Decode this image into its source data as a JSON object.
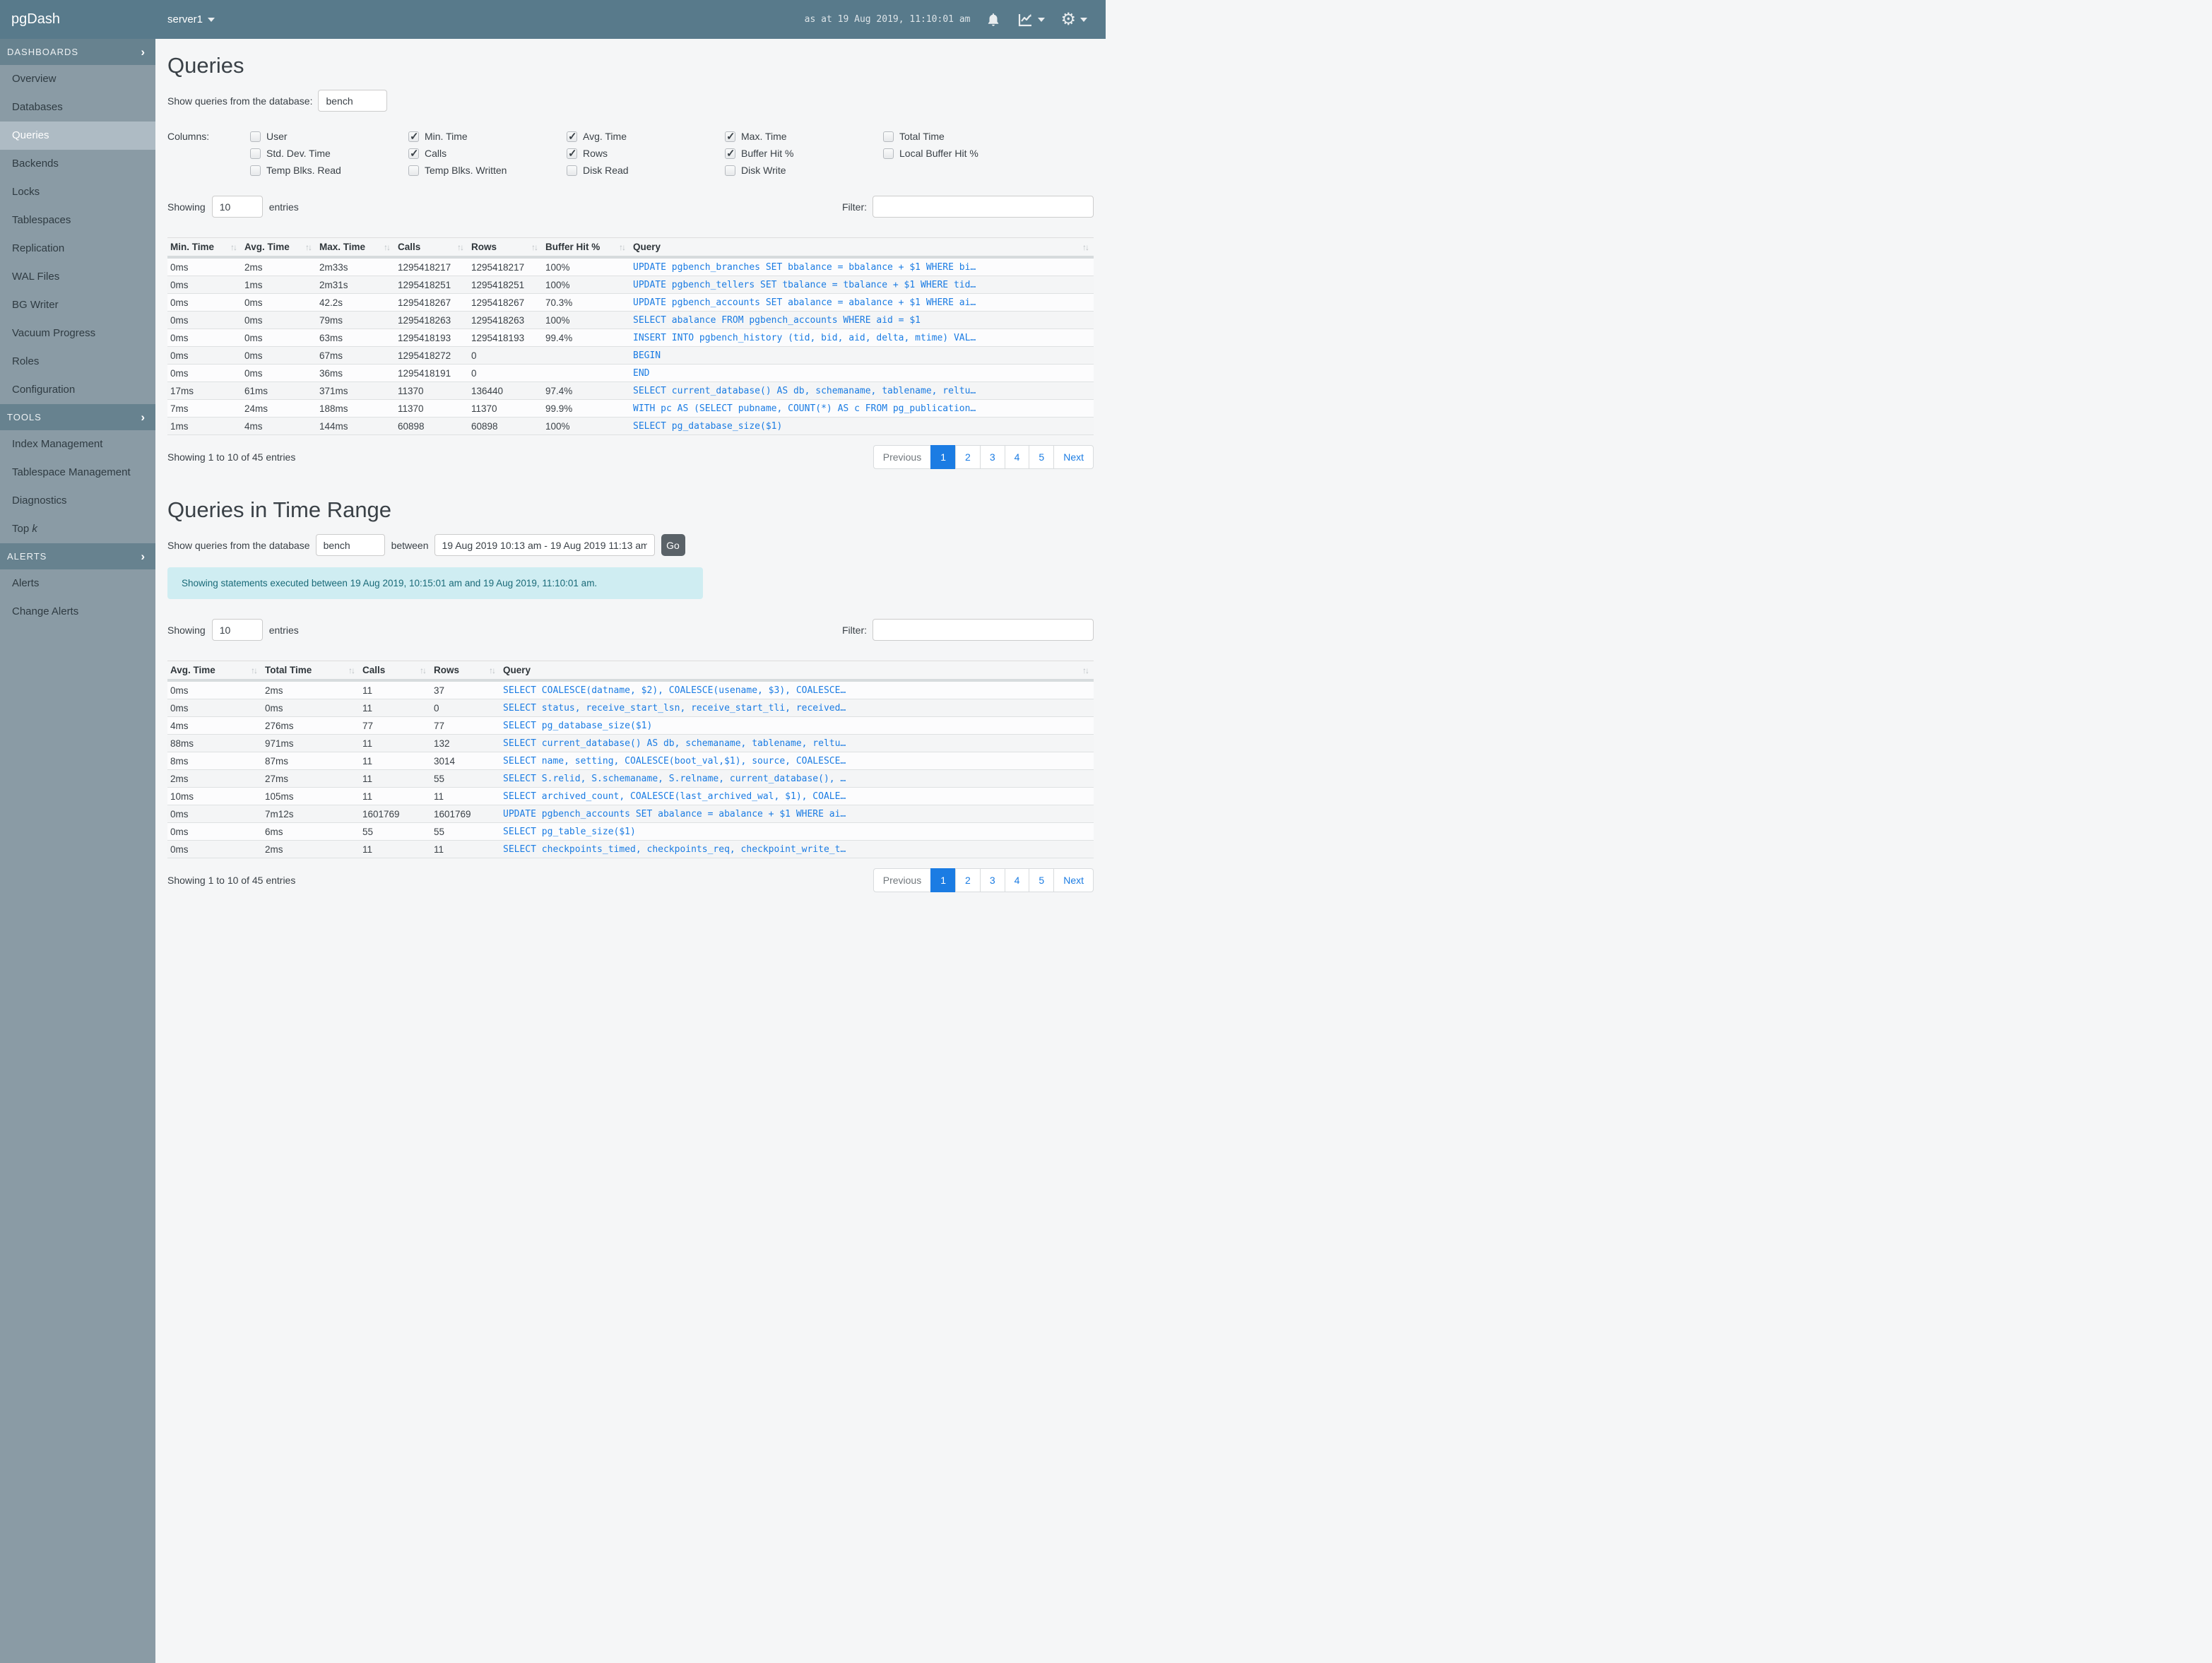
{
  "navbar": {
    "brand": "pgDash",
    "server": "server1",
    "timestamp": "as at 19 Aug 2019, 11:10:01 am",
    "icons": [
      "bell-icon",
      "chart-icon",
      "gear-icon"
    ]
  },
  "colors": {
    "navbar_bg": "#587a8b",
    "sidebar_bg": "#8a9ba5",
    "sidebar_header_bg": "#67828f",
    "active_item_bg": "#aebbc4",
    "link_blue": "#1b7ce3",
    "pagination_active_bg": "#1b7ce3",
    "go_button_bg": "#5a6268",
    "alert_bg": "#cfedf2",
    "alert_text": "#1a6a78"
  },
  "sidebar": {
    "sections": [
      {
        "label": "DASHBOARDS",
        "items": [
          {
            "label": "Overview"
          },
          {
            "label": "Databases"
          },
          {
            "label": "Queries",
            "active": true
          },
          {
            "label": "Backends"
          },
          {
            "label": "Locks"
          },
          {
            "label": "Tablespaces"
          },
          {
            "label": "Replication"
          },
          {
            "label": "WAL Files"
          },
          {
            "label": "BG Writer"
          },
          {
            "label": "Vacuum Progress"
          },
          {
            "label": "Roles"
          },
          {
            "label": "Configuration"
          }
        ]
      },
      {
        "label": "TOOLS",
        "items": [
          {
            "label": "Index Management"
          },
          {
            "label": "Tablespace Management"
          },
          {
            "label": "Diagnostics"
          },
          {
            "label": "Top ",
            "italic": "k"
          }
        ]
      },
      {
        "label": "ALERTS",
        "items": [
          {
            "label": "Alerts"
          },
          {
            "label": "Change Alerts"
          }
        ]
      }
    ]
  },
  "queries_section": {
    "title": "Queries",
    "db_label": "Show queries from the database:",
    "db_value": "bench",
    "columns_label": "Columns:",
    "checkbox_groups": [
      [
        {
          "label": "User",
          "checked": false
        },
        {
          "label": "Std. Dev. Time",
          "checked": false
        },
        {
          "label": "Temp Blks. Read",
          "checked": false
        }
      ],
      [
        {
          "label": "Min. Time",
          "checked": true
        },
        {
          "label": "Calls",
          "checked": true
        },
        {
          "label": "Temp Blks. Written",
          "checked": false
        }
      ],
      [
        {
          "label": "Avg. Time",
          "checked": true
        },
        {
          "label": "Rows",
          "checked": true
        },
        {
          "label": "Disk Read",
          "checked": false
        }
      ],
      [
        {
          "label": "Max. Time",
          "checked": true
        },
        {
          "label": "Buffer Hit %",
          "checked": true
        },
        {
          "label": "Disk Write",
          "checked": false
        }
      ],
      [
        {
          "label": "Total Time",
          "checked": false
        },
        {
          "label": "Local Buffer Hit %",
          "checked": false
        }
      ]
    ],
    "showing_label": "Showing",
    "page_size": "10",
    "entries_label": "entries",
    "filter_label": "Filter:",
    "filter_value": "",
    "table": {
      "headers": [
        "Min. Time",
        "Avg. Time",
        "Max. Time",
        "Calls",
        "Rows",
        "Buffer Hit %",
        "Query"
      ],
      "rows": [
        [
          "0ms",
          "2ms",
          "2m33s",
          "1295418217",
          "1295418217",
          "100%",
          "UPDATE pgbench_branches SET bbalance = bbalance + $1 WHERE bi…"
        ],
        [
          "0ms",
          "1ms",
          "2m31s",
          "1295418251",
          "1295418251",
          "100%",
          "UPDATE pgbench_tellers SET tbalance = tbalance + $1 WHERE tid…"
        ],
        [
          "0ms",
          "0ms",
          "42.2s",
          "1295418267",
          "1295418267",
          "70.3%",
          "UPDATE pgbench_accounts SET abalance = abalance + $1 WHERE ai…"
        ],
        [
          "0ms",
          "0ms",
          "79ms",
          "1295418263",
          "1295418263",
          "100%",
          "SELECT abalance FROM pgbench_accounts WHERE aid = $1"
        ],
        [
          "0ms",
          "0ms",
          "63ms",
          "1295418193",
          "1295418193",
          "99.4%",
          "INSERT INTO pgbench_history (tid, bid, aid, delta, mtime) VAL…"
        ],
        [
          "0ms",
          "0ms",
          "67ms",
          "1295418272",
          "0",
          "",
          "BEGIN"
        ],
        [
          "0ms",
          "0ms",
          "36ms",
          "1295418191",
          "0",
          "",
          "END"
        ],
        [
          "17ms",
          "61ms",
          "371ms",
          "11370",
          "136440",
          "97.4%",
          "SELECT current_database() AS db, schemaname, tablename, reltu…"
        ],
        [
          "7ms",
          "24ms",
          "188ms",
          "11370",
          "11370",
          "99.9%",
          "WITH pc AS (SELECT pubname, COUNT(*) AS c FROM pg_publication…"
        ],
        [
          "1ms",
          "4ms",
          "144ms",
          "60898",
          "60898",
          "100%",
          "SELECT pg_database_size($1)"
        ]
      ]
    },
    "summary": "Showing 1 to 10 of 45 entries",
    "pagination": {
      "previous": "Previous",
      "pages": [
        "1",
        "2",
        "3",
        "4",
        "5"
      ],
      "next": "Next",
      "active": "1"
    }
  },
  "time_range_section": {
    "title": "Queries in Time Range",
    "db_label": "Show queries from the database",
    "db_value": "bench",
    "between_label": "between",
    "range_value": "19 Aug 2019 10:13 am - 19 Aug 2019 11:13 am",
    "go_label": "Go",
    "alert": "Showing statements executed between 19 Aug 2019, 10:15:01 am and 19 Aug 2019, 11:10:01 am.",
    "showing_label": "Showing",
    "page_size": "10",
    "entries_label": "entries",
    "filter_label": "Filter:",
    "filter_value": "",
    "table": {
      "headers": [
        "Avg. Time",
        "Total Time",
        "Calls",
        "Rows",
        "Query"
      ],
      "rows": [
        [
          "0ms",
          "2ms",
          "11",
          "37",
          "SELECT COALESCE(datname, $2), COALESCE(usename, $3), COALESCE…"
        ],
        [
          "0ms",
          "0ms",
          "11",
          "0",
          "SELECT status, receive_start_lsn, receive_start_tli, received…"
        ],
        [
          "4ms",
          "276ms",
          "77",
          "77",
          "SELECT pg_database_size($1)"
        ],
        [
          "88ms",
          "971ms",
          "11",
          "132",
          "SELECT current_database() AS db, schemaname, tablename, reltu…"
        ],
        [
          "8ms",
          "87ms",
          "11",
          "3014",
          "SELECT name, setting, COALESCE(boot_val,$1), source, COALESCE…"
        ],
        [
          "2ms",
          "27ms",
          "11",
          "55",
          "SELECT S.relid, S.schemaname, S.relname, current_database(), …"
        ],
        [
          "10ms",
          "105ms",
          "11",
          "11",
          "SELECT archived_count, COALESCE(last_archived_wal, $1), COALE…"
        ],
        [
          "0ms",
          "7m12s",
          "1601769",
          "1601769",
          "UPDATE pgbench_accounts SET abalance = abalance + $1 WHERE ai…"
        ],
        [
          "0ms",
          "6ms",
          "55",
          "55",
          "SELECT pg_table_size($1)"
        ],
        [
          "0ms",
          "2ms",
          "11",
          "11",
          "SELECT checkpoints_timed, checkpoints_req, checkpoint_write_t…"
        ]
      ]
    },
    "summary": "Showing 1 to 10 of 45 entries",
    "pagination": {
      "previous": "Previous",
      "pages": [
        "1",
        "2",
        "3",
        "4",
        "5"
      ],
      "next": "Next",
      "active": "1"
    }
  }
}
